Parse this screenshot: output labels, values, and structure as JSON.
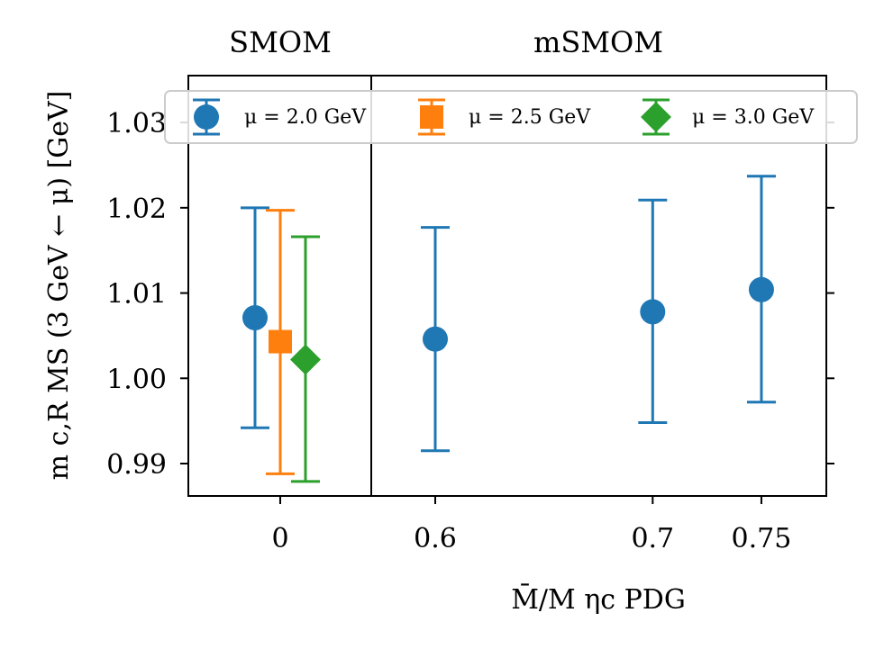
{
  "chart_data": {
    "type": "scatter",
    "panels": [
      {
        "title": "SMOM",
        "x_ticks": [
          {
            "value": 0,
            "label": "0"
          }
        ],
        "points": [
          {
            "series": "μ = 2.0 GeV",
            "x": 0,
            "offset": -1,
            "y": 1.0071,
            "yerr_low": 0.9942,
            "yerr_high": 1.02
          },
          {
            "series": "μ = 2.5 GeV",
            "x": 0,
            "offset": 0,
            "y": 1.0043,
            "yerr_low": 0.9888,
            "yerr_high": 1.0197
          },
          {
            "series": "μ = 3.0 GeV",
            "x": 0,
            "offset": 1,
            "y": 1.0022,
            "yerr_low": 0.9879,
            "yerr_high": 1.0166
          }
        ]
      },
      {
        "title": "mSMOM",
        "x_ticks": [
          {
            "value": 0.6,
            "label": "0.6"
          },
          {
            "value": 0.7,
            "label": "0.7"
          },
          {
            "value": 0.75,
            "label": "0.75"
          }
        ],
        "points": [
          {
            "series": "μ = 2.0 GeV",
            "x": 0.6,
            "y": 1.0046,
            "yerr_low": 0.9915,
            "yerr_high": 1.0177
          },
          {
            "series": "μ = 2.0 GeV",
            "x": 0.7,
            "y": 1.0078,
            "yerr_low": 0.9948,
            "yerr_high": 1.0209
          },
          {
            "series": "μ = 2.0 GeV",
            "x": 0.75,
            "y": 1.0104,
            "yerr_low": 0.9972,
            "yerr_high": 1.0237
          }
        ]
      }
    ],
    "series": [
      {
        "name": "μ = 2.0 GeV",
        "label": "μ = 2.0 GeV",
        "marker": "circle",
        "color": "#1f77b4"
      },
      {
        "name": "μ = 2.5 GeV",
        "label": "μ = 2.5 GeV",
        "marker": "square",
        "color": "#ff7f0e"
      },
      {
        "name": "μ = 3.0 GeV",
        "label": "μ = 3.0 GeV",
        "marker": "diamond",
        "color": "#2ca02c"
      }
    ],
    "ylim": [
      0.9862,
      1.0355
    ],
    "yticks": [
      {
        "value": 0.99,
        "label": "0.99"
      },
      {
        "value": 1.0,
        "label": "1.00"
      },
      {
        "value": 1.01,
        "label": "1.01"
      },
      {
        "value": 1.02,
        "label": "1.02"
      },
      {
        "value": 1.03,
        "label": "1.03"
      }
    ],
    "ylabel": "m c,R MS (3 GeV ← μ) [GeV]",
    "xlabel": "M̄/M ηc PDG",
    "legend_position": "top"
  }
}
